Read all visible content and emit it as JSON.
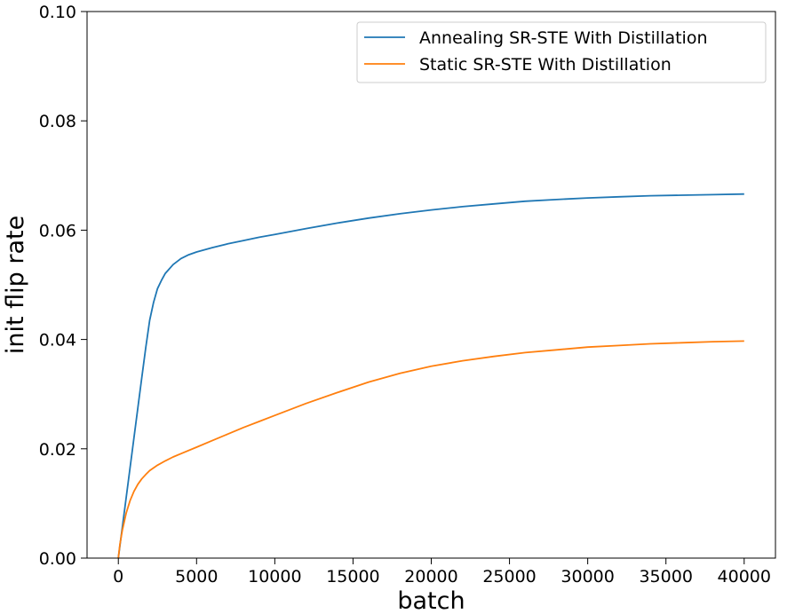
{
  "chart_data": {
    "type": "line",
    "title": "",
    "xlabel": "batch",
    "ylabel": "init flip rate",
    "xlim": [
      -2000,
      42000
    ],
    "ylim": [
      0,
      0.1
    ],
    "xticks": [
      0,
      5000,
      10000,
      15000,
      20000,
      25000,
      30000,
      35000,
      40000
    ],
    "xtick_labels": [
      "0",
      "5000",
      "10000",
      "15000",
      "20000",
      "25000",
      "30000",
      "35000",
      "40000"
    ],
    "yticks": [
      0,
      0.02,
      0.04,
      0.06,
      0.08,
      0.1
    ],
    "ytick_labels": [
      "0.00",
      "0.02",
      "0.04",
      "0.06",
      "0.08",
      "0.10"
    ],
    "grid": false,
    "legend_position": "top-right",
    "series": [
      {
        "name": "Annealing SR-STE With Distillation",
        "color": "#1f77b4",
        "x": [
          0,
          250,
          500,
          750,
          1000,
          1250,
          1500,
          1750,
          2000,
          2250,
          2500,
          2750,
          3000,
          3500,
          4000,
          4500,
          5000,
          6000,
          7000,
          8000,
          9000,
          10000,
          12000,
          14000,
          16000,
          18000,
          20000,
          22000,
          24000,
          26000,
          28000,
          30000,
          32000,
          34000,
          36000,
          38000,
          40000
        ],
        "y": [
          0,
          0.0055,
          0.011,
          0.0165,
          0.022,
          0.0275,
          0.033,
          0.0385,
          0.0435,
          0.0468,
          0.0493,
          0.0508,
          0.0521,
          0.0537,
          0.0548,
          0.0555,
          0.056,
          0.0568,
          0.0575,
          0.0581,
          0.0587,
          0.0592,
          0.0603,
          0.0613,
          0.0622,
          0.063,
          0.0637,
          0.0643,
          0.0648,
          0.0653,
          0.0656,
          0.0659,
          0.0661,
          0.0663,
          0.0664,
          0.0665,
          0.0666
        ]
      },
      {
        "name": "Static SR-STE With Distillation",
        "color": "#ff7f0e",
        "x": [
          0,
          100,
          250,
          500,
          750,
          1000,
          1250,
          1500,
          1750,
          2000,
          2500,
          3000,
          3500,
          4000,
          5000,
          6000,
          7000,
          8000,
          9000,
          10000,
          12000,
          14000,
          16000,
          18000,
          20000,
          22000,
          24000,
          26000,
          28000,
          30000,
          32000,
          34000,
          36000,
          38000,
          40000
        ],
        "y": [
          0,
          0.0025,
          0.005,
          0.0082,
          0.0105,
          0.0122,
          0.0135,
          0.0145,
          0.0153,
          0.016,
          0.017,
          0.0178,
          0.0185,
          0.0191,
          0.0203,
          0.0215,
          0.0227,
          0.0239,
          0.025,
          0.0261,
          0.0283,
          0.0303,
          0.0322,
          0.0338,
          0.0351,
          0.0361,
          0.0369,
          0.0376,
          0.0381,
          0.0386,
          0.0389,
          0.0392,
          0.0394,
          0.0396,
          0.0397
        ]
      }
    ]
  }
}
